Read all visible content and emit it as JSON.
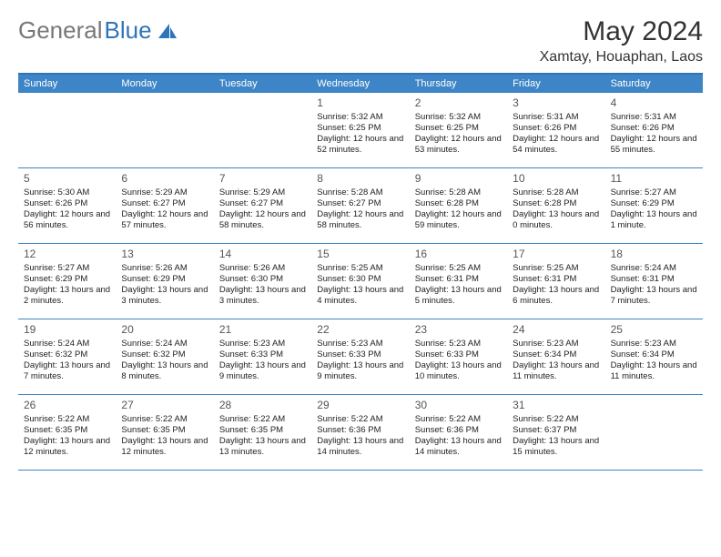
{
  "logo": {
    "text1": "General",
    "text2": "Blue"
  },
  "title": "May 2024",
  "location": "Xamtay, Houaphan, Laos",
  "colors": {
    "header_bg": "#3d85c6",
    "header_border": "#2d75b8",
    "week_border": "#3d85c6",
    "text": "#222222",
    "daynum": "#555555"
  },
  "dayNames": [
    "Sunday",
    "Monday",
    "Tuesday",
    "Wednesday",
    "Thursday",
    "Friday",
    "Saturday"
  ],
  "weeks": [
    [
      {
        "n": "",
        "r": "",
        "s": "",
        "d": ""
      },
      {
        "n": "",
        "r": "",
        "s": "",
        "d": ""
      },
      {
        "n": "",
        "r": "",
        "s": "",
        "d": ""
      },
      {
        "n": "1",
        "r": "5:32 AM",
        "s": "6:25 PM",
        "d": "12 hours and 52 minutes."
      },
      {
        "n": "2",
        "r": "5:32 AM",
        "s": "6:25 PM",
        "d": "12 hours and 53 minutes."
      },
      {
        "n": "3",
        "r": "5:31 AM",
        "s": "6:26 PM",
        "d": "12 hours and 54 minutes."
      },
      {
        "n": "4",
        "r": "5:31 AM",
        "s": "6:26 PM",
        "d": "12 hours and 55 minutes."
      }
    ],
    [
      {
        "n": "5",
        "r": "5:30 AM",
        "s": "6:26 PM",
        "d": "12 hours and 56 minutes."
      },
      {
        "n": "6",
        "r": "5:29 AM",
        "s": "6:27 PM",
        "d": "12 hours and 57 minutes."
      },
      {
        "n": "7",
        "r": "5:29 AM",
        "s": "6:27 PM",
        "d": "12 hours and 58 minutes."
      },
      {
        "n": "8",
        "r": "5:28 AM",
        "s": "6:27 PM",
        "d": "12 hours and 58 minutes."
      },
      {
        "n": "9",
        "r": "5:28 AM",
        "s": "6:28 PM",
        "d": "12 hours and 59 minutes."
      },
      {
        "n": "10",
        "r": "5:28 AM",
        "s": "6:28 PM",
        "d": "13 hours and 0 minutes."
      },
      {
        "n": "11",
        "r": "5:27 AM",
        "s": "6:29 PM",
        "d": "13 hours and 1 minute."
      }
    ],
    [
      {
        "n": "12",
        "r": "5:27 AM",
        "s": "6:29 PM",
        "d": "13 hours and 2 minutes."
      },
      {
        "n": "13",
        "r": "5:26 AM",
        "s": "6:29 PM",
        "d": "13 hours and 3 minutes."
      },
      {
        "n": "14",
        "r": "5:26 AM",
        "s": "6:30 PM",
        "d": "13 hours and 3 minutes."
      },
      {
        "n": "15",
        "r": "5:25 AM",
        "s": "6:30 PM",
        "d": "13 hours and 4 minutes."
      },
      {
        "n": "16",
        "r": "5:25 AM",
        "s": "6:31 PM",
        "d": "13 hours and 5 minutes."
      },
      {
        "n": "17",
        "r": "5:25 AM",
        "s": "6:31 PM",
        "d": "13 hours and 6 minutes."
      },
      {
        "n": "18",
        "r": "5:24 AM",
        "s": "6:31 PM",
        "d": "13 hours and 7 minutes."
      }
    ],
    [
      {
        "n": "19",
        "r": "5:24 AM",
        "s": "6:32 PM",
        "d": "13 hours and 7 minutes."
      },
      {
        "n": "20",
        "r": "5:24 AM",
        "s": "6:32 PM",
        "d": "13 hours and 8 minutes."
      },
      {
        "n": "21",
        "r": "5:23 AM",
        "s": "6:33 PM",
        "d": "13 hours and 9 minutes."
      },
      {
        "n": "22",
        "r": "5:23 AM",
        "s": "6:33 PM",
        "d": "13 hours and 9 minutes."
      },
      {
        "n": "23",
        "r": "5:23 AM",
        "s": "6:33 PM",
        "d": "13 hours and 10 minutes."
      },
      {
        "n": "24",
        "r": "5:23 AM",
        "s": "6:34 PM",
        "d": "13 hours and 11 minutes."
      },
      {
        "n": "25",
        "r": "5:23 AM",
        "s": "6:34 PM",
        "d": "13 hours and 11 minutes."
      }
    ],
    [
      {
        "n": "26",
        "r": "5:22 AM",
        "s": "6:35 PM",
        "d": "13 hours and 12 minutes."
      },
      {
        "n": "27",
        "r": "5:22 AM",
        "s": "6:35 PM",
        "d": "13 hours and 12 minutes."
      },
      {
        "n": "28",
        "r": "5:22 AM",
        "s": "6:35 PM",
        "d": "13 hours and 13 minutes."
      },
      {
        "n": "29",
        "r": "5:22 AM",
        "s": "6:36 PM",
        "d": "13 hours and 14 minutes."
      },
      {
        "n": "30",
        "r": "5:22 AM",
        "s": "6:36 PM",
        "d": "13 hours and 14 minutes."
      },
      {
        "n": "31",
        "r": "5:22 AM",
        "s": "6:37 PM",
        "d": "13 hours and 15 minutes."
      },
      {
        "n": "",
        "r": "",
        "s": "",
        "d": ""
      }
    ]
  ],
  "labels": {
    "sunrise": "Sunrise: ",
    "sunset": "Sunset: ",
    "daylight": "Daylight: "
  }
}
